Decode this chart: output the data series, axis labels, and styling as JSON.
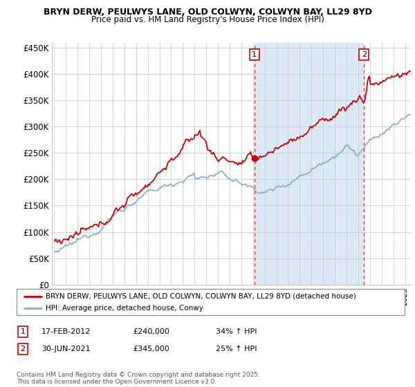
{
  "title1": "BRYN DERW, PEULWYS LANE, OLD COLWYN, COLWYN BAY, LL29 8YD",
  "title2": "Price paid vs. HM Land Registry's House Price Index (HPI)",
  "background_color": "#ffffff",
  "plot_bg_color": "#ffffff",
  "shade_color": "#dce8f5",
  "sale1_date": "17-FEB-2012",
  "sale1_price": 240000,
  "sale1_year": 2012.12,
  "sale1_hpi": "34% ↑ HPI",
  "sale2_date": "30-JUN-2021",
  "sale2_price": 345000,
  "sale2_year": 2021.5,
  "sale2_hpi": "25% ↑ HPI",
  "legend_label_red": "BRYN DERW, PEULWYS LANE, OLD COLWYN, COLWYN BAY, LL29 8YD (detached house)",
  "legend_label_blue": "HPI: Average price, detached house, Conwy",
  "footer": "Contains HM Land Registry data © Crown copyright and database right 2025.\nThis data is licensed under the Open Government Licence v3.0.",
  "red_color": "#cc0000",
  "blue_color": "#7aafd4",
  "dashed_color": "#cc0000",
  "grid_color": "#cccccc",
  "ylim": [
    0,
    460000
  ],
  "yticks": [
    0,
    50000,
    100000,
    150000,
    200000,
    250000,
    300000,
    350000,
    400000,
    450000
  ],
  "ylabels": [
    "£0",
    "£50K",
    "£100K",
    "£150K",
    "£200K",
    "£250K",
    "£300K",
    "£350K",
    "£400K",
    "£450K"
  ],
  "xlim_start": 1994.8,
  "xlim_end": 2025.5
}
